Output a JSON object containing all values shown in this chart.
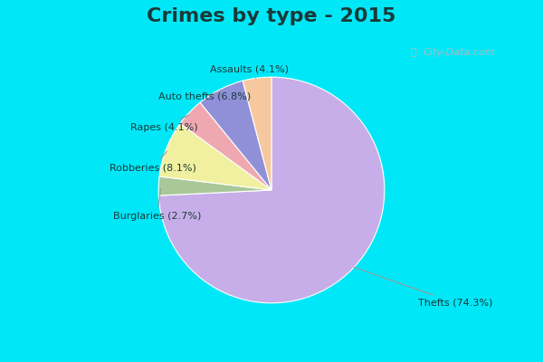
{
  "title": "Crimes by type - 2015",
  "title_fontsize": 16,
  "title_fontweight": "bold",
  "title_color": "#1a3a3a",
  "labels": [
    "Thefts",
    "Burglaries",
    "Robberies",
    "Rapes",
    "Auto thefts",
    "Assaults"
  ],
  "pct_labels": [
    "74.3%",
    "2.7%",
    "8.1%",
    "4.1%",
    "6.8%",
    "4.1%"
  ],
  "values": [
    74.3,
    2.7,
    8.1,
    4.1,
    6.8,
    4.1
  ],
  "colors": [
    "#c8aee8",
    "#a8c898",
    "#f0f0a0",
    "#f0a8b0",
    "#9090d8",
    "#f5c8a0"
  ],
  "background_cyan": "#00e8f8",
  "background_main": "#c8e8d0",
  "startangle": 90,
  "counterclock": false
}
